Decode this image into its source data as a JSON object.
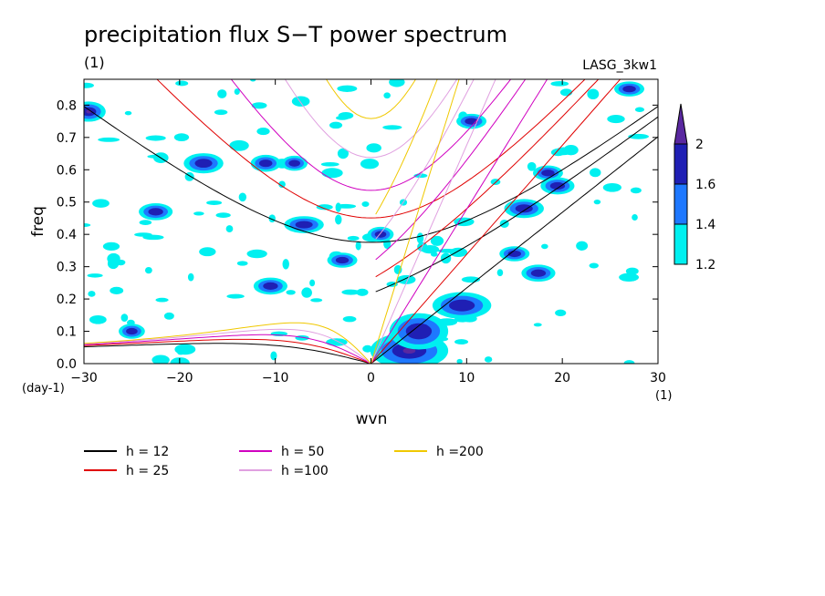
{
  "chart_data": {
    "type": "heatmap",
    "title": "precipitation flux S−T power spectrum",
    "subtitle": "(1)",
    "source_label": "LASG_3kw1",
    "xlabel": "wvn",
    "ylabel": "freq",
    "x_unit": "(1)",
    "y_unit": "(day-1)",
    "xlim": [
      -30,
      30
    ],
    "ylim": [
      0,
      0.88
    ],
    "x_ticks": [
      -30,
      -20,
      -10,
      0,
      10,
      20,
      30
    ],
    "x_tick_labels": [
      "−30",
      "−20",
      "−10",
      "0",
      "10",
      "20",
      "30"
    ],
    "y_ticks": [
      0,
      0.1,
      0.2,
      0.3,
      0.4,
      0.5,
      0.6,
      0.7,
      0.8
    ],
    "y_tick_labels": [
      "0.0",
      "0.1",
      "0.2",
      "0.3",
      "0.4",
      "0.5",
      "0.6",
      "0.7",
      "0.8"
    ],
    "colorbar": {
      "levels": [
        1.2,
        1.4,
        1.6,
        2
      ],
      "labels": [
        "1.2",
        "1.4",
        "1.6",
        "2"
      ],
      "colors": [
        "#00f0f0",
        "#1e78ff",
        "#1f1fb4",
        "#5a28a0"
      ]
    },
    "dispersion_curves": [
      {
        "label": "h = 12",
        "h": 12,
        "color": "#000000"
      },
      {
        "label": "h = 25",
        "h": 25,
        "color": "#e00000"
      },
      {
        "label": "h = 50",
        "h": 50,
        "color": "#d000c0"
      },
      {
        "label": "h =100",
        "h": 100,
        "color": "#e0a0e0"
      },
      {
        "label": "h =200",
        "h": 200,
        "color": "#f0c800"
      }
    ],
    "power_regions": [
      {
        "x": 4.0,
        "y": 0.04,
        "w": 3.5,
        "h": 0.045,
        "level": 3
      },
      {
        "x": 5.0,
        "y": 0.1,
        "w": 2.5,
        "h": 0.045,
        "level": 2
      },
      {
        "x": 9.5,
        "y": 0.18,
        "w": 2.5,
        "h": 0.03,
        "level": 2
      },
      {
        "x": -29.5,
        "y": 0.78,
        "w": 1.2,
        "h": 0.02,
        "level": 3
      },
      {
        "x": -17.5,
        "y": 0.62,
        "w": 1.5,
        "h": 0.02,
        "level": 2
      },
      {
        "x": -11.0,
        "y": 0.62,
        "w": 1.0,
        "h": 0.015,
        "level": 2
      },
      {
        "x": -8.0,
        "y": 0.62,
        "w": 0.8,
        "h": 0.012,
        "level": 2
      },
      {
        "x": -22.5,
        "y": 0.47,
        "w": 1.2,
        "h": 0.015,
        "level": 2
      },
      {
        "x": -7.0,
        "y": 0.43,
        "w": 1.5,
        "h": 0.015,
        "level": 2
      },
      {
        "x": -10.5,
        "y": 0.24,
        "w": 1.2,
        "h": 0.015,
        "level": 2
      },
      {
        "x": -3.0,
        "y": 0.32,
        "w": 1.0,
        "h": 0.012,
        "level": 2
      },
      {
        "x": -25.0,
        "y": 0.1,
        "w": 0.8,
        "h": 0.012,
        "level": 2
      },
      {
        "x": 16.0,
        "y": 0.48,
        "w": 1.5,
        "h": 0.018,
        "level": 2
      },
      {
        "x": 19.5,
        "y": 0.55,
        "w": 1.2,
        "h": 0.015,
        "level": 2
      },
      {
        "x": 17.5,
        "y": 0.28,
        "w": 1.2,
        "h": 0.015,
        "level": 2
      },
      {
        "x": 18.5,
        "y": 0.59,
        "w": 1.0,
        "h": 0.012,
        "level": 2
      },
      {
        "x": 10.5,
        "y": 0.75,
        "w": 1.0,
        "h": 0.012,
        "level": 2
      },
      {
        "x": 15.0,
        "y": 0.34,
        "w": 1.0,
        "h": 0.012,
        "level": 2
      },
      {
        "x": 27.0,
        "y": 0.85,
        "w": 1.0,
        "h": 0.012,
        "level": 2
      },
      {
        "x": 1.0,
        "y": 0.4,
        "w": 0.8,
        "h": 0.012,
        "level": 2
      }
    ]
  }
}
